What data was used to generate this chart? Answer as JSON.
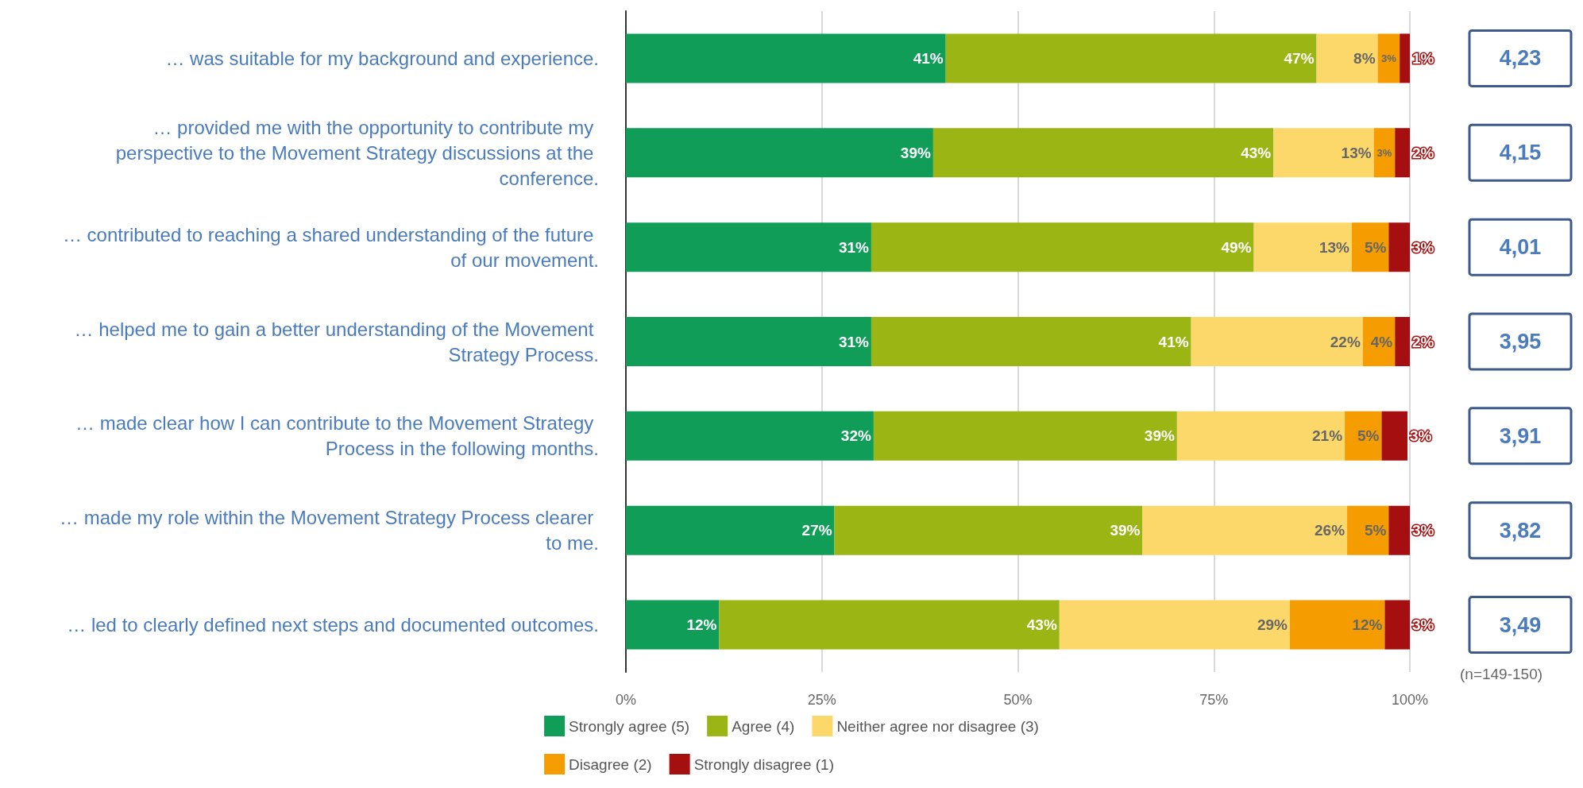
{
  "chart_data": {
    "type": "bar",
    "orientation": "horizontal",
    "stacked": true,
    "categories": [
      "… was suitable for my background and experience.",
      "… provided me with the opportunity to contribute my perspective to the Movement Strategy discussions at the conference.",
      "… contributed to reaching a shared understanding of the future of our movement.",
      "… helped me to gain a better understanding of the Movement Strategy Process.",
      "… made clear how I can contribute to the Movement Strategy Process in the following months.",
      "… made my role within the Movement Strategy Process clearer to me.",
      "… led to clearly defined next steps and documented outcomes."
    ],
    "series": [
      {
        "name": "Strongly agree (5)",
        "color": "#0f9d58",
        "values": [
          40.8,
          39.2,
          31.3,
          31.3,
          31.6,
          26.6,
          11.9
        ],
        "value_labels": [
          "41%",
          "39%",
          "31%",
          "31%",
          "32%",
          "27%",
          "12%"
        ]
      },
      {
        "name": "Agree (4)",
        "color": "#9ab514",
        "values": [
          47.3,
          43.4,
          48.8,
          40.8,
          38.7,
          39.3,
          43.4
        ],
        "value_labels": [
          "47%",
          "43%",
          "49%",
          "41%",
          "39%",
          "39%",
          "43%"
        ]
      },
      {
        "name": "Neither agree nor disagree (3)",
        "color": "#fcd86a",
        "values": [
          7.8,
          12.8,
          12.5,
          21.9,
          21.4,
          26.1,
          29.4
        ],
        "value_labels": [
          "8%",
          "13%",
          "13%",
          "22%",
          "21%",
          "26%",
          "29%"
        ]
      },
      {
        "name": "Disagree (2)",
        "color": "#f59c00",
        "values": [
          2.8,
          2.7,
          4.7,
          4.1,
          4.7,
          5.3,
          12.1
        ],
        "value_labels": [
          "3%",
          "3%",
          "5%",
          "4%",
          "5%",
          "5%",
          "12%"
        ]
      },
      {
        "name": "Strongly disagree (1)",
        "color": "#a50f0f",
        "values": [
          1.3,
          1.9,
          2.7,
          1.9,
          3.3,
          2.7,
          3.2
        ],
        "value_labels": [
          "1%",
          "2%",
          "3%",
          "2%",
          "3%",
          "3%",
          "3%"
        ]
      }
    ],
    "xlim": [
      0,
      100
    ],
    "xticks": [
      {
        "value": 0,
        "label": "0%"
      },
      {
        "value": 25,
        "label": "25%"
      },
      {
        "value": 50,
        "label": "50%"
      },
      {
        "value": 75,
        "label": "75%"
      },
      {
        "value": 100,
        "label": "100%"
      }
    ],
    "grid": "x",
    "legend": "bottom",
    "annotations": [
      "4,23",
      "4,15",
      "4,01",
      "3,95",
      "3,91",
      "3,82",
      "3,49",
      "(n=149-150)"
    ]
  }
}
